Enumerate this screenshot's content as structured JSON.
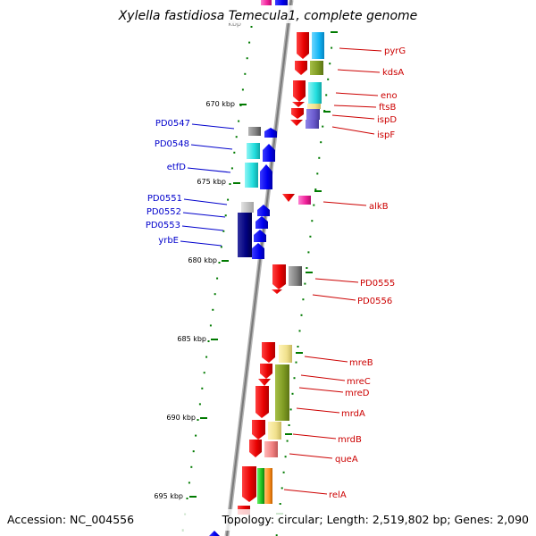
{
  "title": "Xylella fastidiosa Temecula1, complete genome",
  "footer": {
    "accession": "Accession: NC_004556",
    "topology": "Topology: circular; Length: 2,519,802 bp; Genes: 2,090"
  },
  "colors": {
    "backbone": "#888888",
    "tick": "#007a00",
    "left_label": "#0000cc",
    "right_label": "#cc0000"
  },
  "kbp_ticks": [
    {
      "label": "670 kbp",
      "kbp": 670
    },
    {
      "label": "675 kbp",
      "kbp": 675
    },
    {
      "label": "680 kbp",
      "kbp": 680
    },
    {
      "label": "685 kbp",
      "kbp": 685
    },
    {
      "label": "690 kbp",
      "kbp": 690
    },
    {
      "label": "695 kbp",
      "kbp": 695
    }
  ],
  "left_labels": [
    {
      "name": "PD0547"
    },
    {
      "name": "PD0548"
    },
    {
      "name": "etfD"
    },
    {
      "name": "PD0551"
    },
    {
      "name": "PD0552"
    },
    {
      "name": "PD0553"
    },
    {
      "name": "yrbE"
    }
  ],
  "right_labels": [
    {
      "name": "pyrG"
    },
    {
      "name": "kdsA"
    },
    {
      "name": "eno"
    },
    {
      "name": "ftsB"
    },
    {
      "name": "ispD"
    },
    {
      "name": "ispF"
    },
    {
      "name": "alkB"
    },
    {
      "name": "PD0555"
    },
    {
      "name": "PD0556"
    },
    {
      "name": "mreB"
    },
    {
      "name": "mreC"
    },
    {
      "name": "mreD"
    },
    {
      "name": "mrdA"
    },
    {
      "name": "mrdB"
    },
    {
      "name": "queA"
    },
    {
      "name": "relA"
    }
  ]
}
